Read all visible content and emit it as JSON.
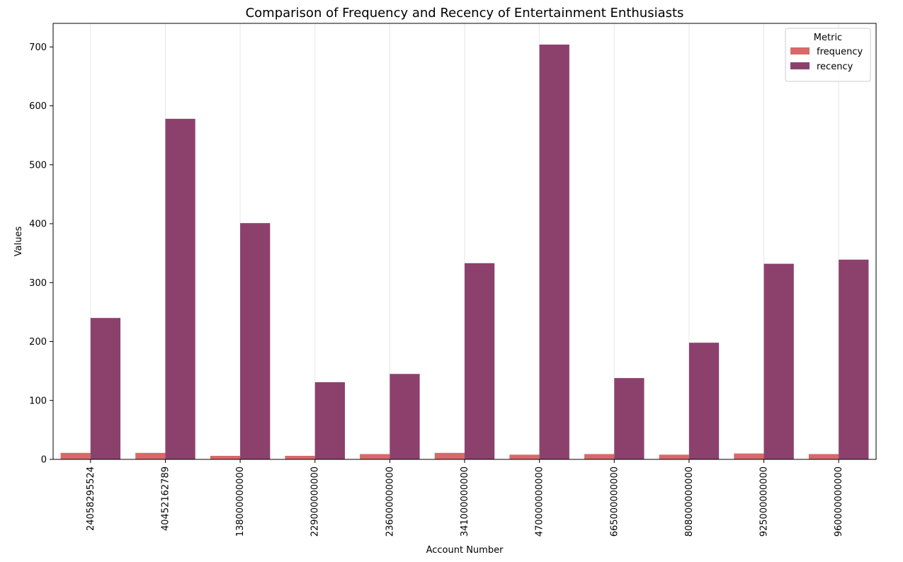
{
  "chart_data": {
    "type": "bar",
    "title": "Comparison of Frequency and Recency of Entertainment Enthusiasts",
    "xlabel": "Account Number",
    "ylabel": "Values",
    "ylim": [
      0,
      740
    ],
    "yticks": [
      0,
      100,
      200,
      300,
      400,
      500,
      600,
      700
    ],
    "grid": "vertical",
    "categories": [
      "24058295524",
      "40452162789",
      "138000000000",
      "229000000000",
      "236000000000",
      "341000000000",
      "470000000000",
      "665000000000",
      "808000000000",
      "925000000000",
      "960000000000"
    ],
    "series": [
      {
        "name": "frequency",
        "color": "#d9686a",
        "values": [
          11,
          11,
          6,
          6,
          9,
          11,
          8,
          9,
          8,
          10,
          9
        ]
      },
      {
        "name": "recency",
        "color": "#8c416d",
        "values": [
          240,
          578,
          401,
          131,
          145,
          333,
          704,
          138,
          198,
          332,
          339
        ]
      }
    ],
    "legend": {
      "title": "Metric",
      "position": "top-right"
    }
  }
}
